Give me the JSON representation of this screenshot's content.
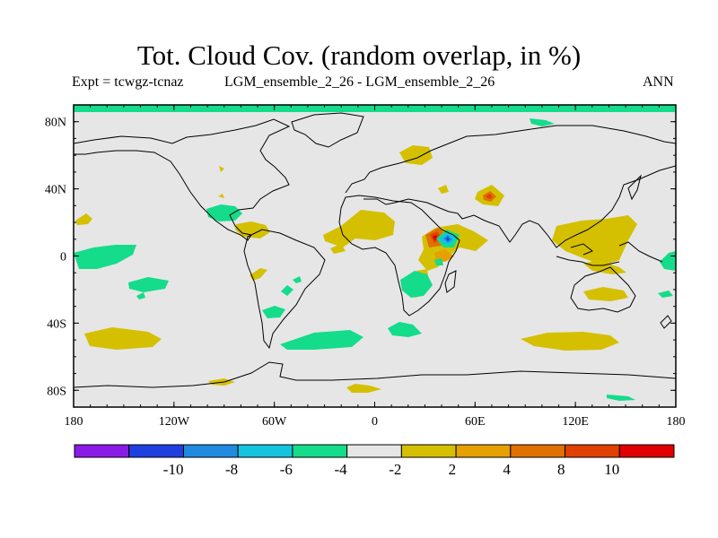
{
  "title": "Tot. Cloud Cov. (random overlap, in %)",
  "subtitle_left": "Expt = tcwgz-tcnaz",
  "subtitle_center": "LGM_ensemble_2_26 - LGM_ensemble_2_26",
  "subtitle_right": "ANN",
  "map": {
    "lon_ticks": [
      {
        "lon": -180,
        "label": "180"
      },
      {
        "lon": -120,
        "label": "120W"
      },
      {
        "lon": -60,
        "label": "60W"
      },
      {
        "lon": 0,
        "label": "0"
      },
      {
        "lon": 60,
        "label": "60E"
      },
      {
        "lon": 120,
        "label": "120E"
      },
      {
        "lon": 180,
        "label": "180"
      }
    ],
    "lat_ticks": [
      {
        "lat": 80,
        "label": "80N"
      },
      {
        "lat": 40,
        "label": "40N"
      },
      {
        "lat": 0,
        "label": "0"
      },
      {
        "lat": -40,
        "label": "40S"
      },
      {
        "lat": -80,
        "label": "80S"
      }
    ],
    "background_color": "#e6e6e6"
  },
  "colorbar": {
    "bins": [
      {
        "color": "#8a1ae6"
      },
      {
        "color": "#1f3fe0"
      },
      {
        "color": "#1f8ae0"
      },
      {
        "color": "#14c4dc"
      },
      {
        "color": "#14dc8a"
      },
      {
        "color": "#e6e6e6"
      },
      {
        "color": "#d4c000"
      },
      {
        "color": "#e6a000"
      },
      {
        "color": "#e07000"
      },
      {
        "color": "#e04000"
      },
      {
        "color": "#e00000"
      }
    ],
    "labels": [
      "-10",
      "-8",
      "-6",
      "-4",
      "-2",
      "2",
      "4",
      "8",
      "10"
    ]
  },
  "chart_data": {
    "type": "heatmap",
    "title": "Tot. Cloud Cov. (random overlap, in %)",
    "xlabel": "",
    "ylabel": "",
    "x_range": [
      -180,
      180
    ],
    "y_range": [
      -90,
      90
    ],
    "contour_levels": [
      -10,
      -8,
      -6,
      -4,
      -2,
      2,
      4,
      8,
      10
    ],
    "regions": [
      {
        "category": "neg_2_4",
        "lon": 0,
        "lat": 88,
        "desc": "polar band"
      },
      {
        "category": "pos_2_4",
        "lon": -175,
        "lat": 22
      },
      {
        "category": "neg_2_4",
        "lon": -167,
        "lat": 0
      },
      {
        "category": "neg_2_4",
        "lon": -135,
        "lat": -17
      },
      {
        "category": "pos_2_4",
        "lon": -155,
        "lat": -50
      },
      {
        "category": "neg_2_4",
        "lon": -88,
        "lat": 25
      },
      {
        "category": "pos_2_4",
        "lon": -69,
        "lat": 16
      },
      {
        "category": "pos_2_4",
        "lon": -82,
        "lat": -10
      },
      {
        "category": "neg_2_4",
        "lon": -51,
        "lat": -33
      },
      {
        "category": "neg_2_4",
        "lon": -25,
        "lat": -50
      },
      {
        "category": "pos_2_4",
        "lon": -5,
        "lat": 16
      },
      {
        "category": "pos_2_4",
        "lon": 42,
        "lat": 55
      },
      {
        "category": "pos_2_4",
        "lon": 45,
        "lat": 30
      },
      {
        "category": "pos_4_8",
        "lon": 68,
        "lat": 35
      },
      {
        "category": "pos_8_10",
        "lon": 35,
        "lat": 10
      },
      {
        "category": "neg_6_8",
        "lon": 45,
        "lat": 10
      },
      {
        "category": "pos_2_4",
        "lon": 43,
        "lat": 9
      },
      {
        "category": "neg_2_4",
        "lon": 24,
        "lat": -20
      },
      {
        "category": "pos_2_4",
        "lon": 120,
        "lat": 10
      },
      {
        "category": "pos_2_4",
        "lon": 127,
        "lat": -24
      },
      {
        "category": "neg_2_4",
        "lon": 180,
        "lat": 0
      },
      {
        "category": "pos_2_4",
        "lon": 105,
        "lat": -51
      },
      {
        "category": "neg_2_4",
        "lon": 8,
        "lat": -40
      },
      {
        "category": "pos_2_4",
        "lon": -10,
        "lat": -80
      }
    ]
  }
}
